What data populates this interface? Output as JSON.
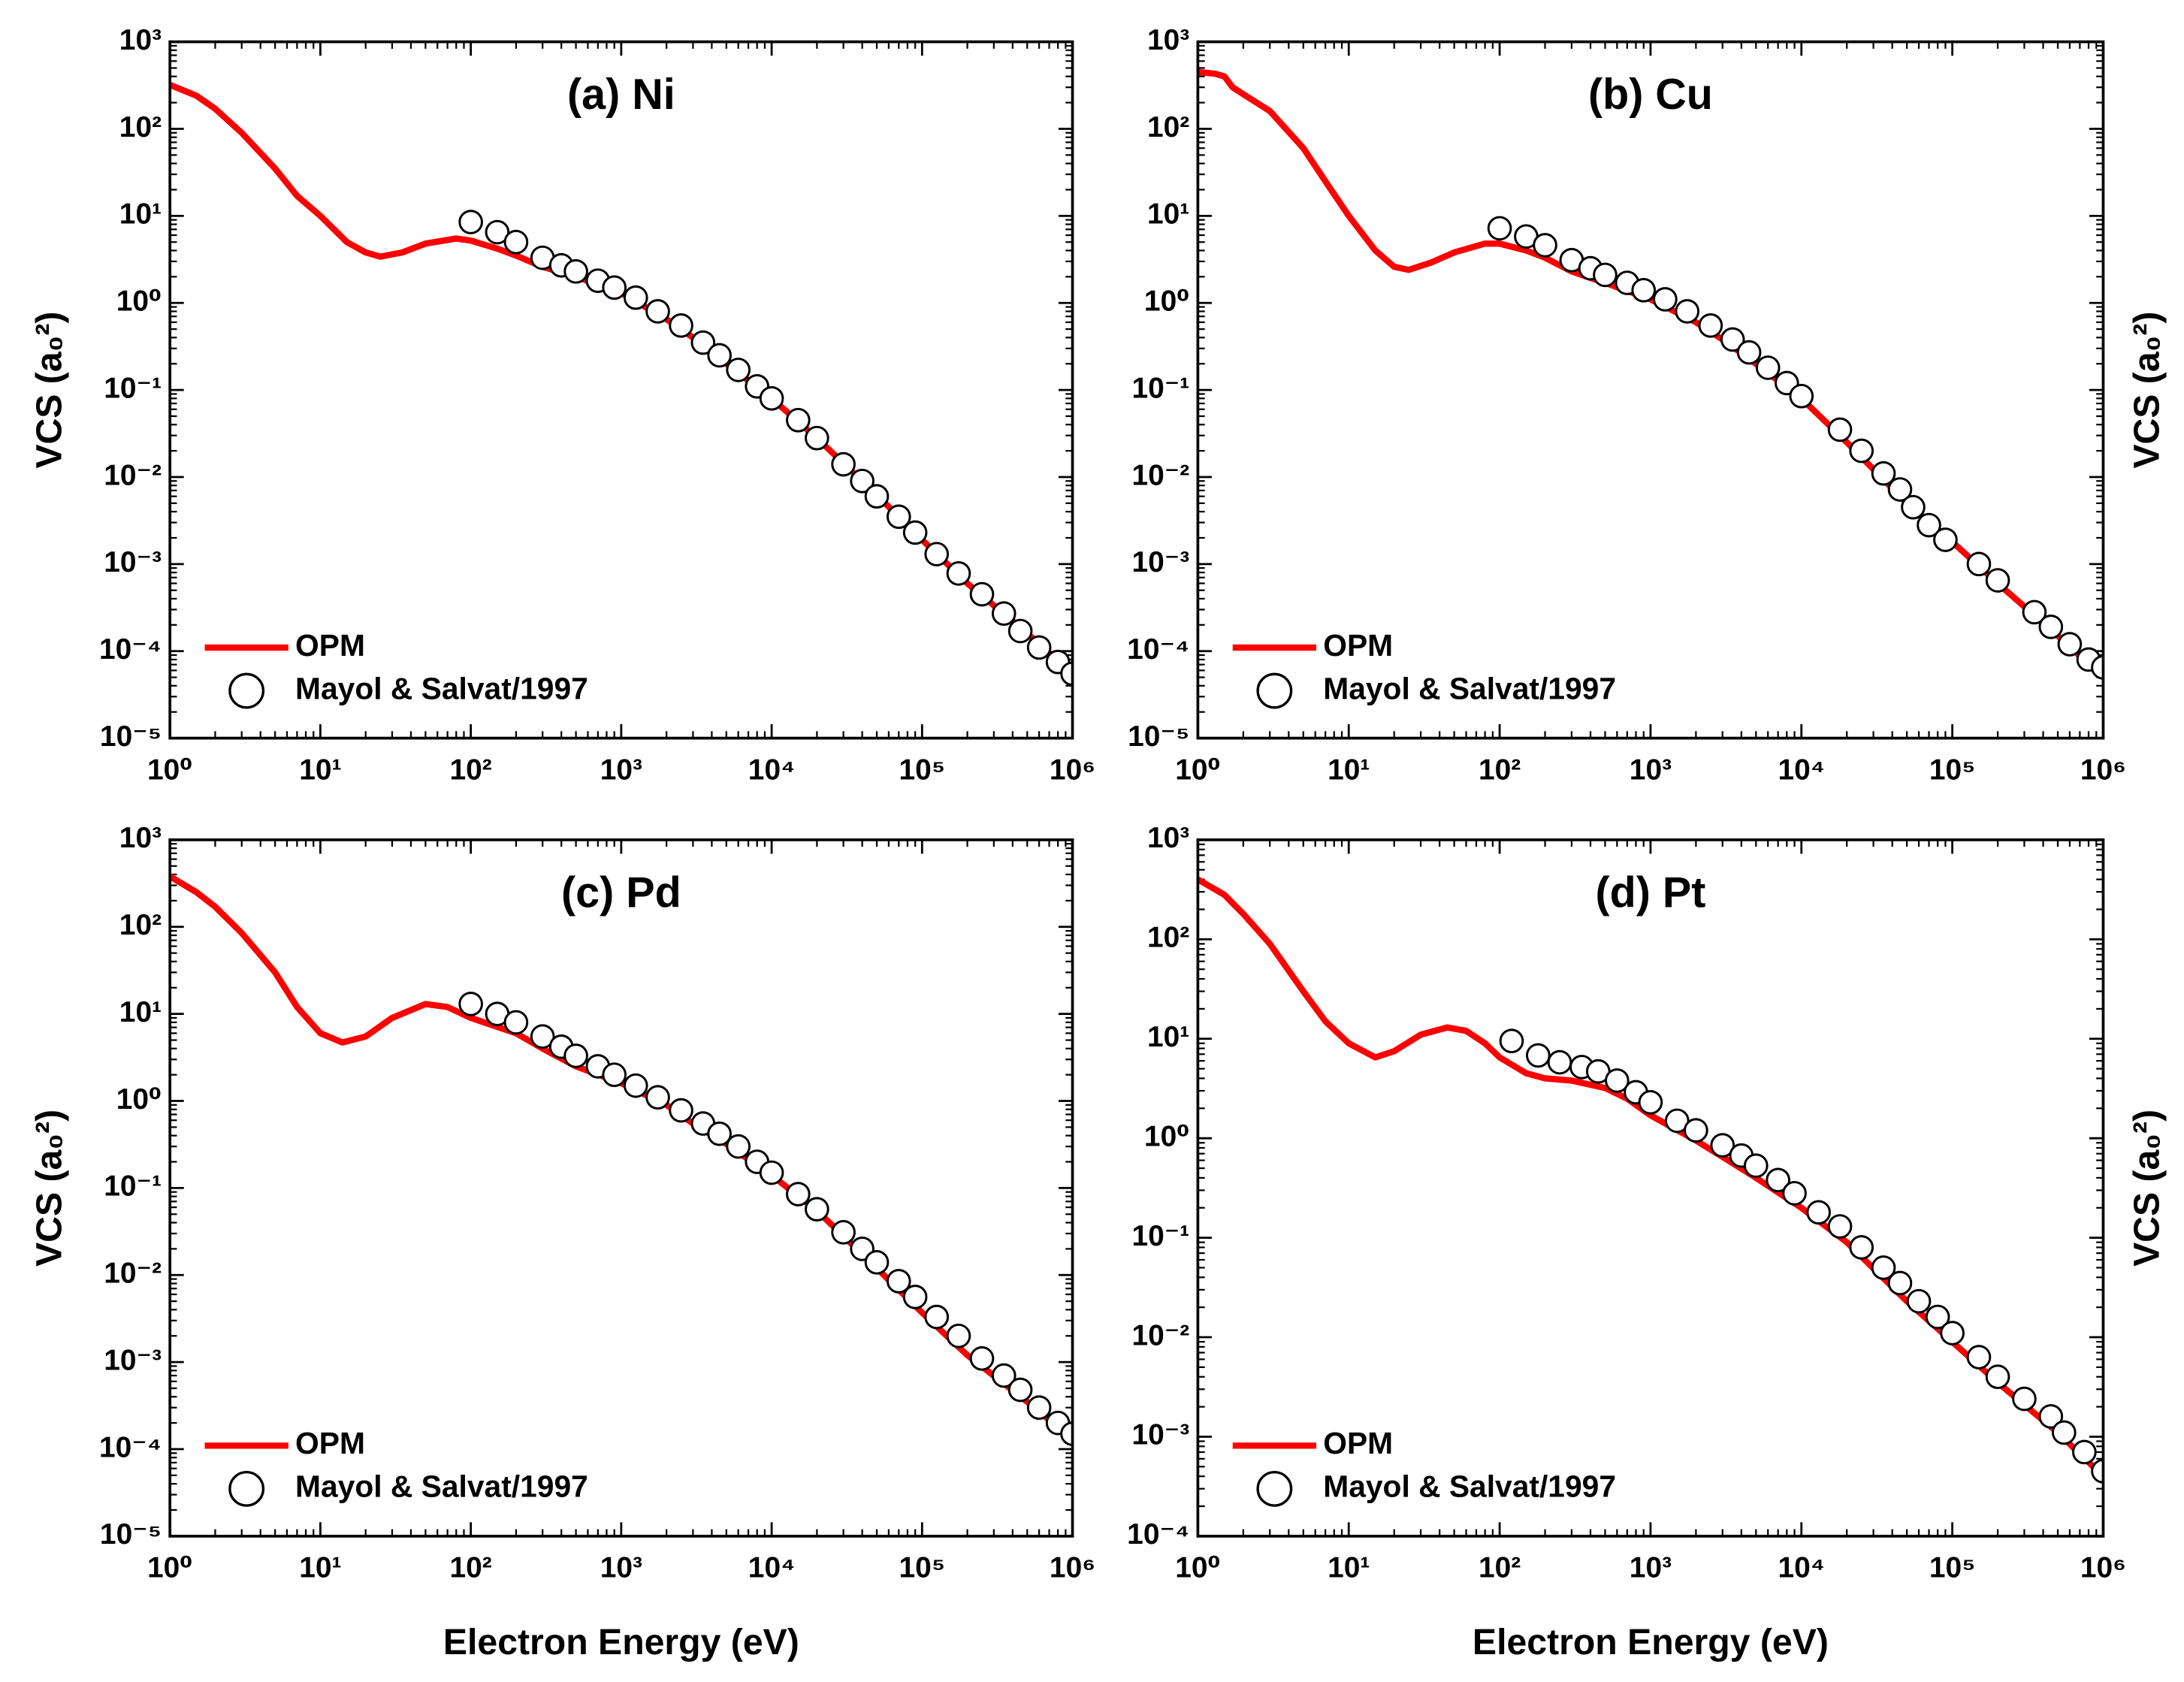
{
  "chart_data": [
    {
      "type": "line",
      "title": "(a) Ni",
      "ylabel": "VCS (a₀²)",
      "ylabel_side": "left",
      "xscale": "log",
      "yscale": "log",
      "legend": "lower left",
      "xlim": [
        1,
        1000000
      ],
      "ylim": [
        1e-05,
        1000
      ],
      "xticks": [
        {
          "value": 1,
          "label": "10⁰"
        },
        {
          "value": 10,
          "label": "10¹"
        },
        {
          "value": 100,
          "label": "10²"
        },
        {
          "value": 1000,
          "label": "10³"
        },
        {
          "value": 10000,
          "label": "10⁴"
        },
        {
          "value": 100000,
          "label": "10⁵"
        },
        {
          "value": 1000000,
          "label": "10⁶"
        }
      ],
      "yticks": [
        {
          "value": 1e-05,
          "label": "10⁻⁵"
        },
        {
          "value": 0.0001,
          "label": "10⁻⁴"
        },
        {
          "value": 0.001,
          "label": "10⁻³"
        },
        {
          "value": 0.01,
          "label": "10⁻²"
        },
        {
          "value": 0.1,
          "label": "10⁻¹"
        },
        {
          "value": 1,
          "label": "10⁰"
        },
        {
          "value": 10,
          "label": "10¹"
        },
        {
          "value": 100,
          "label": "10²"
        },
        {
          "value": 1000,
          "label": "10³"
        }
      ],
      "series": [
        {
          "name": "OPM",
          "type": "line",
          "color": "#ff0000",
          "x": [
            1,
            1.5,
            2,
            3,
            5,
            7,
            10,
            15,
            20,
            25,
            35,
            50,
            80,
            100,
            150,
            200,
            300,
            500,
            1000,
            2000,
            3000,
            5000,
            10000,
            20000,
            50000,
            100000,
            200000,
            500000,
            1000000
          ],
          "values": [
            320,
            240,
            170,
            90,
            35,
            17,
            10,
            5,
            3.8,
            3.4,
            3.8,
            4.8,
            5.5,
            5.2,
            4.2,
            3.5,
            2.6,
            2.0,
            1.3,
            0.65,
            0.4,
            0.2,
            0.08,
            0.028,
            0.0062,
            0.0019,
            0.0006,
            0.00016,
            5.5e-05
          ]
        },
        {
          "name": "Mayol & Salvat/1997",
          "type": "scatter",
          "color": "#000000",
          "x": [
            100,
            150,
            200,
            300,
            400,
            500,
            700,
            900,
            1250,
            1750,
            2500,
            3500,
            4500,
            6000,
            8000,
            10000,
            15000,
            20000,
            30000,
            40000,
            50000,
            70000,
            90000,
            125000,
            175000,
            250000,
            350000,
            450000,
            600000,
            800000,
            1000000
          ],
          "values": [
            8.5,
            6.5,
            5,
            3.3,
            2.7,
            2.3,
            1.8,
            1.5,
            1.15,
            0.8,
            0.55,
            0.35,
            0.25,
            0.17,
            0.11,
            0.08,
            0.045,
            0.028,
            0.014,
            0.009,
            0.006,
            0.0035,
            0.0023,
            0.0013,
            0.00078,
            0.00045,
            0.00027,
            0.00017,
            0.00011,
            7.5e-05,
            5.5e-05
          ]
        }
      ]
    },
    {
      "type": "line",
      "title": "(b) Cu",
      "ylabel": "VCS (a₀²)",
      "ylabel_side": "right",
      "xscale": "log",
      "yscale": "log",
      "legend": "lower left",
      "xlim": [
        1,
        1000000
      ],
      "ylim": [
        1e-05,
        1000
      ],
      "xticks": [
        {
          "value": 1,
          "label": "10⁰"
        },
        {
          "value": 10,
          "label": "10¹"
        },
        {
          "value": 100,
          "label": "10²"
        },
        {
          "value": 1000,
          "label": "10³"
        },
        {
          "value": 10000,
          "label": "10⁴"
        },
        {
          "value": 100000,
          "label": "10⁵"
        },
        {
          "value": 1000000,
          "label": "10⁶"
        }
      ],
      "yticks": [
        {
          "value": 1e-05,
          "label": "10⁻⁵"
        },
        {
          "value": 0.0001,
          "label": "10⁻⁴"
        },
        {
          "value": 0.001,
          "label": "10⁻³"
        },
        {
          "value": 0.01,
          "label": "10⁻²"
        },
        {
          "value": 0.1,
          "label": "10⁻¹"
        },
        {
          "value": 1,
          "label": "10⁰"
        },
        {
          "value": 10,
          "label": "10¹"
        },
        {
          "value": 100,
          "label": "10²"
        },
        {
          "value": 1000,
          "label": "10³"
        }
      ],
      "series": [
        {
          "name": "OPM",
          "type": "line",
          "color": "#ff0000",
          "x": [
            1,
            1.3,
            1.5,
            1.7,
            2,
            3,
            5,
            7,
            10,
            15,
            20,
            25,
            35,
            50,
            80,
            100,
            150,
            200,
            300,
            500,
            1000,
            2000,
            3000,
            5000,
            10000,
            20000,
            50000,
            100000,
            200000,
            500000,
            1000000
          ],
          "values": [
            450,
            430,
            400,
            300,
            250,
            160,
            60,
            25,
            10,
            4,
            2.6,
            2.4,
            2.9,
            3.8,
            4.8,
            4.8,
            4.0,
            3.3,
            2.3,
            1.7,
            1.1,
            0.6,
            0.38,
            0.2,
            0.08,
            0.025,
            0.005,
            0.0018,
            0.0006,
            0.00015,
            5e-05
          ]
        },
        {
          "name": "Mayol & Salvat/1997",
          "type": "scatter",
          "color": "#000000",
          "x": [
            100,
            150,
            200,
            300,
            400,
            500,
            700,
            900,
            1250,
            1750,
            2500,
            3500,
            4500,
            6000,
            8000,
            10000,
            18000,
            25000,
            35000,
            45000,
            55000,
            70000,
            90000,
            150000,
            200000,
            350000,
            450000,
            600000,
            800000,
            1000000
          ],
          "values": [
            7.2,
            5.8,
            4.6,
            3.1,
            2.5,
            2.1,
            1.7,
            1.4,
            1.1,
            0.8,
            0.55,
            0.38,
            0.27,
            0.18,
            0.12,
            0.085,
            0.035,
            0.02,
            0.011,
            0.0072,
            0.0045,
            0.0028,
            0.0019,
            0.001,
            0.00065,
            0.00028,
            0.00019,
            0.00012,
            8e-05,
            6.5e-05
          ]
        }
      ]
    },
    {
      "type": "line",
      "title": "(c) Pd",
      "ylabel": "VCS (a₀²)",
      "ylabel_side": "left",
      "xlabel": "Electron Energy (eV)",
      "xscale": "log",
      "yscale": "log",
      "legend": "lower left",
      "xlim": [
        1,
        1000000
      ],
      "ylim": [
        1e-05,
        1000
      ],
      "xticks": [
        {
          "value": 1,
          "label": "10⁰"
        },
        {
          "value": 10,
          "label": "10¹"
        },
        {
          "value": 100,
          "label": "10²"
        },
        {
          "value": 1000,
          "label": "10³"
        },
        {
          "value": 10000,
          "label": "10⁴"
        },
        {
          "value": 100000,
          "label": "10⁵"
        },
        {
          "value": 1000000,
          "label": "10⁶"
        }
      ],
      "yticks": [
        {
          "value": 1e-05,
          "label": "10⁻⁵"
        },
        {
          "value": 0.0001,
          "label": "10⁻⁴"
        },
        {
          "value": 0.001,
          "label": "10⁻³"
        },
        {
          "value": 0.01,
          "label": "10⁻²"
        },
        {
          "value": 0.1,
          "label": "10⁻¹"
        },
        {
          "value": 1,
          "label": "10⁰"
        },
        {
          "value": 10,
          "label": "10¹"
        },
        {
          "value": 100,
          "label": "10²"
        },
        {
          "value": 1000,
          "label": "10³"
        }
      ],
      "series": [
        {
          "name": "OPM",
          "type": "line",
          "color": "#ff0000",
          "x": [
            1,
            1.5,
            2,
            3,
            5,
            7,
            10,
            14,
            20,
            30,
            50,
            70,
            100,
            200,
            300,
            500,
            1000,
            2000,
            3000,
            5000,
            10000,
            20000,
            50000,
            100000,
            200000,
            500000,
            1000000
          ],
          "values": [
            380,
            250,
            170,
            85,
            30,
            12,
            6,
            4.7,
            5.5,
            9,
            13,
            12,
            9,
            6,
            4,
            2.5,
            1.6,
            0.9,
            0.55,
            0.32,
            0.14,
            0.055,
            0.012,
            0.0037,
            0.0012,
            0.00035,
            0.00013
          ]
        },
        {
          "name": "Mayol & Salvat/1997",
          "type": "scatter",
          "color": "#000000",
          "x": [
            100,
            150,
            200,
            300,
            400,
            500,
            700,
            900,
            1250,
            1750,
            2500,
            3500,
            4500,
            6000,
            8000,
            10000,
            15000,
            20000,
            30000,
            40000,
            50000,
            70000,
            90000,
            125000,
            175000,
            250000,
            350000,
            450000,
            600000,
            800000,
            1000000
          ],
          "values": [
            13,
            10,
            8,
            5.5,
            4.2,
            3.3,
            2.5,
            2,
            1.5,
            1.1,
            0.78,
            0.55,
            0.42,
            0.3,
            0.2,
            0.15,
            0.085,
            0.057,
            0.031,
            0.02,
            0.014,
            0.0085,
            0.0056,
            0.0033,
            0.002,
            0.0011,
            0.0007,
            0.00048,
            0.0003,
            0.0002,
            0.00015
          ]
        }
      ]
    },
    {
      "type": "line",
      "title": "(d) Pt",
      "ylabel": "VCS (a₀²)",
      "ylabel_side": "right",
      "xlabel": "Electron Energy (eV)",
      "xscale": "log",
      "yscale": "log",
      "legend": "lower left",
      "xlim": [
        1,
        1000000
      ],
      "ylim": [
        0.0001,
        1000
      ],
      "xticks": [
        {
          "value": 1,
          "label": "10⁰"
        },
        {
          "value": 10,
          "label": "10¹"
        },
        {
          "value": 100,
          "label": "10²"
        },
        {
          "value": 1000,
          "label": "10³"
        },
        {
          "value": 10000,
          "label": "10⁴"
        },
        {
          "value": 100000,
          "label": "10⁵"
        },
        {
          "value": 1000000,
          "label": "10⁶"
        }
      ],
      "yticks": [
        {
          "value": 0.0001,
          "label": "10⁻⁴"
        },
        {
          "value": 0.001,
          "label": "10⁻³"
        },
        {
          "value": 0.01,
          "label": "10⁻²"
        },
        {
          "value": 0.1,
          "label": "10⁻¹"
        },
        {
          "value": 1,
          "label": "10⁰"
        },
        {
          "value": 10,
          "label": "10¹"
        },
        {
          "value": 100,
          "label": "10²"
        },
        {
          "value": 1000,
          "label": "10³"
        }
      ],
      "series": [
        {
          "name": "OPM",
          "type": "line",
          "color": "#ff0000",
          "x": [
            1,
            1.5,
            2,
            3,
            5,
            7,
            10,
            15,
            20,
            30,
            45,
            60,
            80,
            100,
            150,
            200,
            300,
            500,
            700,
            1000,
            2000,
            3000,
            5000,
            10000,
            20000,
            50000,
            100000,
            200000,
            500000,
            1000000
          ],
          "values": [
            400,
            280,
            180,
            90,
            30,
            15,
            9,
            6.5,
            7.5,
            11,
            13,
            12,
            9,
            6.5,
            4.5,
            4,
            3.8,
            3.2,
            2.5,
            1.7,
            0.95,
            0.65,
            0.4,
            0.2,
            0.09,
            0.023,
            0.009,
            0.0035,
            0.0011,
            0.0004
          ]
        },
        {
          "name": "Mayol & Salvat/1997",
          "type": "scatter",
          "color": "#000000",
          "x": [
            120,
            180,
            250,
            350,
            450,
            600,
            800,
            1000,
            1500,
            2000,
            3000,
            4000,
            5000,
            7000,
            9000,
            13000,
            18000,
            25000,
            35000,
            45000,
            60000,
            80000,
            100000,
            150000,
            200000,
            300000,
            450000,
            550000,
            750000,
            1000000
          ],
          "values": [
            9.5,
            6.8,
            5.8,
            5.2,
            4.7,
            3.8,
            2.9,
            2.3,
            1.5,
            1.2,
            0.85,
            0.67,
            0.53,
            0.38,
            0.28,
            0.18,
            0.13,
            0.08,
            0.05,
            0.035,
            0.023,
            0.016,
            0.011,
            0.0063,
            0.004,
            0.0024,
            0.0016,
            0.0011,
            0.0007,
            0.00045
          ]
        }
      ]
    }
  ]
}
